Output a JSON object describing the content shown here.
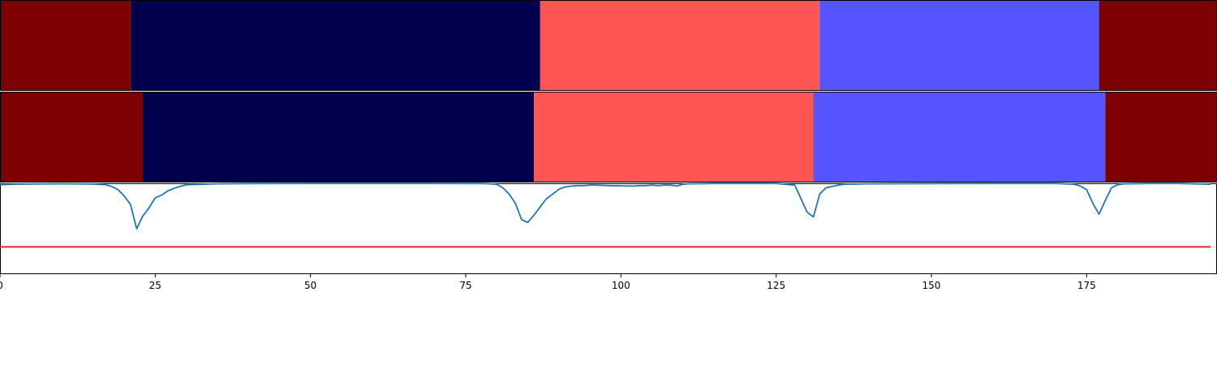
{
  "chart_data": {
    "type": "segmentation",
    "x_range": [
      0,
      196
    ],
    "xticks": [
      0,
      25,
      50,
      75,
      100,
      125,
      150,
      175
    ],
    "grid": false,
    "bands": [
      {
        "name": "",
        "segments": [
          {
            "start": 0,
            "end": 21,
            "color": "#7f0000"
          },
          {
            "start": 21,
            "end": 87,
            "color": "#00004c"
          },
          {
            "start": 87,
            "end": 132,
            "color": "#ff5555"
          },
          {
            "start": 132,
            "end": 177,
            "color": "#5555ff"
          },
          {
            "start": 177,
            "end": 196,
            "color": "#7f0000"
          }
        ]
      },
      {
        "name": "",
        "segments": [
          {
            "start": 0,
            "end": 23,
            "color": "#7f0000"
          },
          {
            "start": 23,
            "end": 86,
            "color": "#00004c"
          },
          {
            "start": 86,
            "end": 131,
            "color": "#ff5555"
          },
          {
            "start": 131,
            "end": 178,
            "color": "#5555ff"
          },
          {
            "start": 178,
            "end": 196,
            "color": "#7f0000"
          }
        ]
      }
    ],
    "signal": {
      "color": "#1f77b4",
      "ylim": [
        0,
        1
      ],
      "x": [
        0,
        2,
        5,
        10,
        15,
        17,
        18,
        19,
        20,
        21,
        22,
        23,
        24,
        25,
        26,
        27,
        28,
        29,
        30,
        35,
        40,
        50,
        60,
        70,
        78,
        80,
        81,
        82,
        83,
        84,
        85,
        86,
        87,
        88,
        89,
        90,
        91,
        92,
        93,
        94,
        95,
        96,
        98,
        100,
        102,
        103,
        104,
        105,
        106,
        107,
        108,
        109,
        110,
        111,
        115,
        120,
        125,
        128,
        129,
        130,
        131,
        132,
        133,
        134,
        135,
        136,
        140,
        150,
        160,
        170,
        173,
        174,
        175,
        176,
        177,
        178,
        179,
        180,
        181,
        185,
        190,
        195
      ],
      "y": [
        0.985,
        0.99,
        0.992,
        0.995,
        0.992,
        0.985,
        0.965,
        0.93,
        0.86,
        0.77,
        0.5,
        0.64,
        0.73,
        0.84,
        0.87,
        0.915,
        0.945,
        0.965,
        0.985,
        0.995,
        0.997,
        0.998,
        0.998,
        0.998,
        0.997,
        0.99,
        0.95,
        0.88,
        0.78,
        0.6,
        0.57,
        0.65,
        0.74,
        0.83,
        0.88,
        0.935,
        0.96,
        0.97,
        0.975,
        0.975,
        0.98,
        0.98,
        0.975,
        0.972,
        0.97,
        0.975,
        0.975,
        0.98,
        0.975,
        0.98,
        0.98,
        0.97,
        0.99,
        0.995,
        0.998,
        0.998,
        0.998,
        0.98,
        0.83,
        0.68,
        0.63,
        0.88,
        0.95,
        0.965,
        0.98,
        0.99,
        0.995,
        0.997,
        0.998,
        0.998,
        0.99,
        0.97,
        0.93,
        0.78,
        0.66,
        0.81,
        0.95,
        0.985,
        0.995,
        0.998,
        0.998,
        0.99
      ]
    },
    "threshold": {
      "value": 0.3,
      "color": "#e8272b"
    }
  }
}
